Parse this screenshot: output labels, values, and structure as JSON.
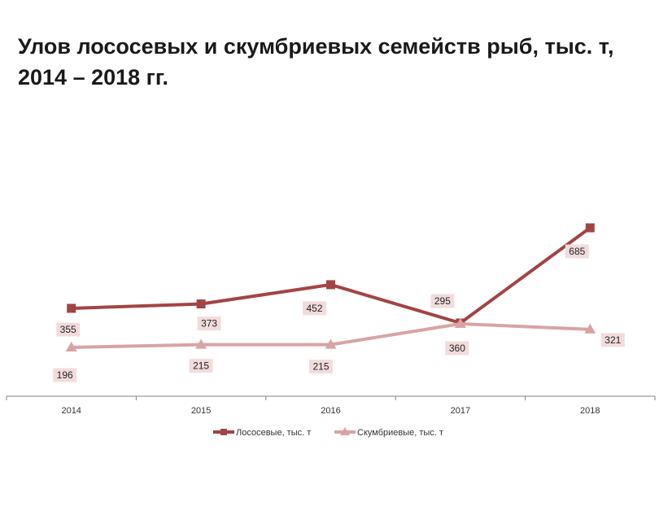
{
  "chart_data": {
    "type": "line",
    "title": "Улов лососевых и скумбриевых семейств рыб, тыс. т, 2014 – 2018 гг.",
    "categories": [
      "2014",
      "2015",
      "2016",
      "2017",
      "2018"
    ],
    "series": [
      {
        "name": "Лососевые, тыс. т",
        "values": [
          355,
          373,
          452,
          295,
          685
        ],
        "value_labels": [
          "355",
          "373",
          "452",
          "295",
          "685"
        ],
        "color": "#a34444",
        "marker": "square"
      },
      {
        "name": "Скумбриевые,  тыс. т",
        "values": [
          196,
          215,
          215,
          360,
          321
        ],
        "value_labels": [
          "196",
          "215",
          "215",
          "360",
          "321"
        ],
        "color": "#d9a3a3",
        "marker": "triangle"
      }
    ],
    "label_box_color": "#f2dcdb",
    "legend_position": "bottom",
    "grid": false
  }
}
